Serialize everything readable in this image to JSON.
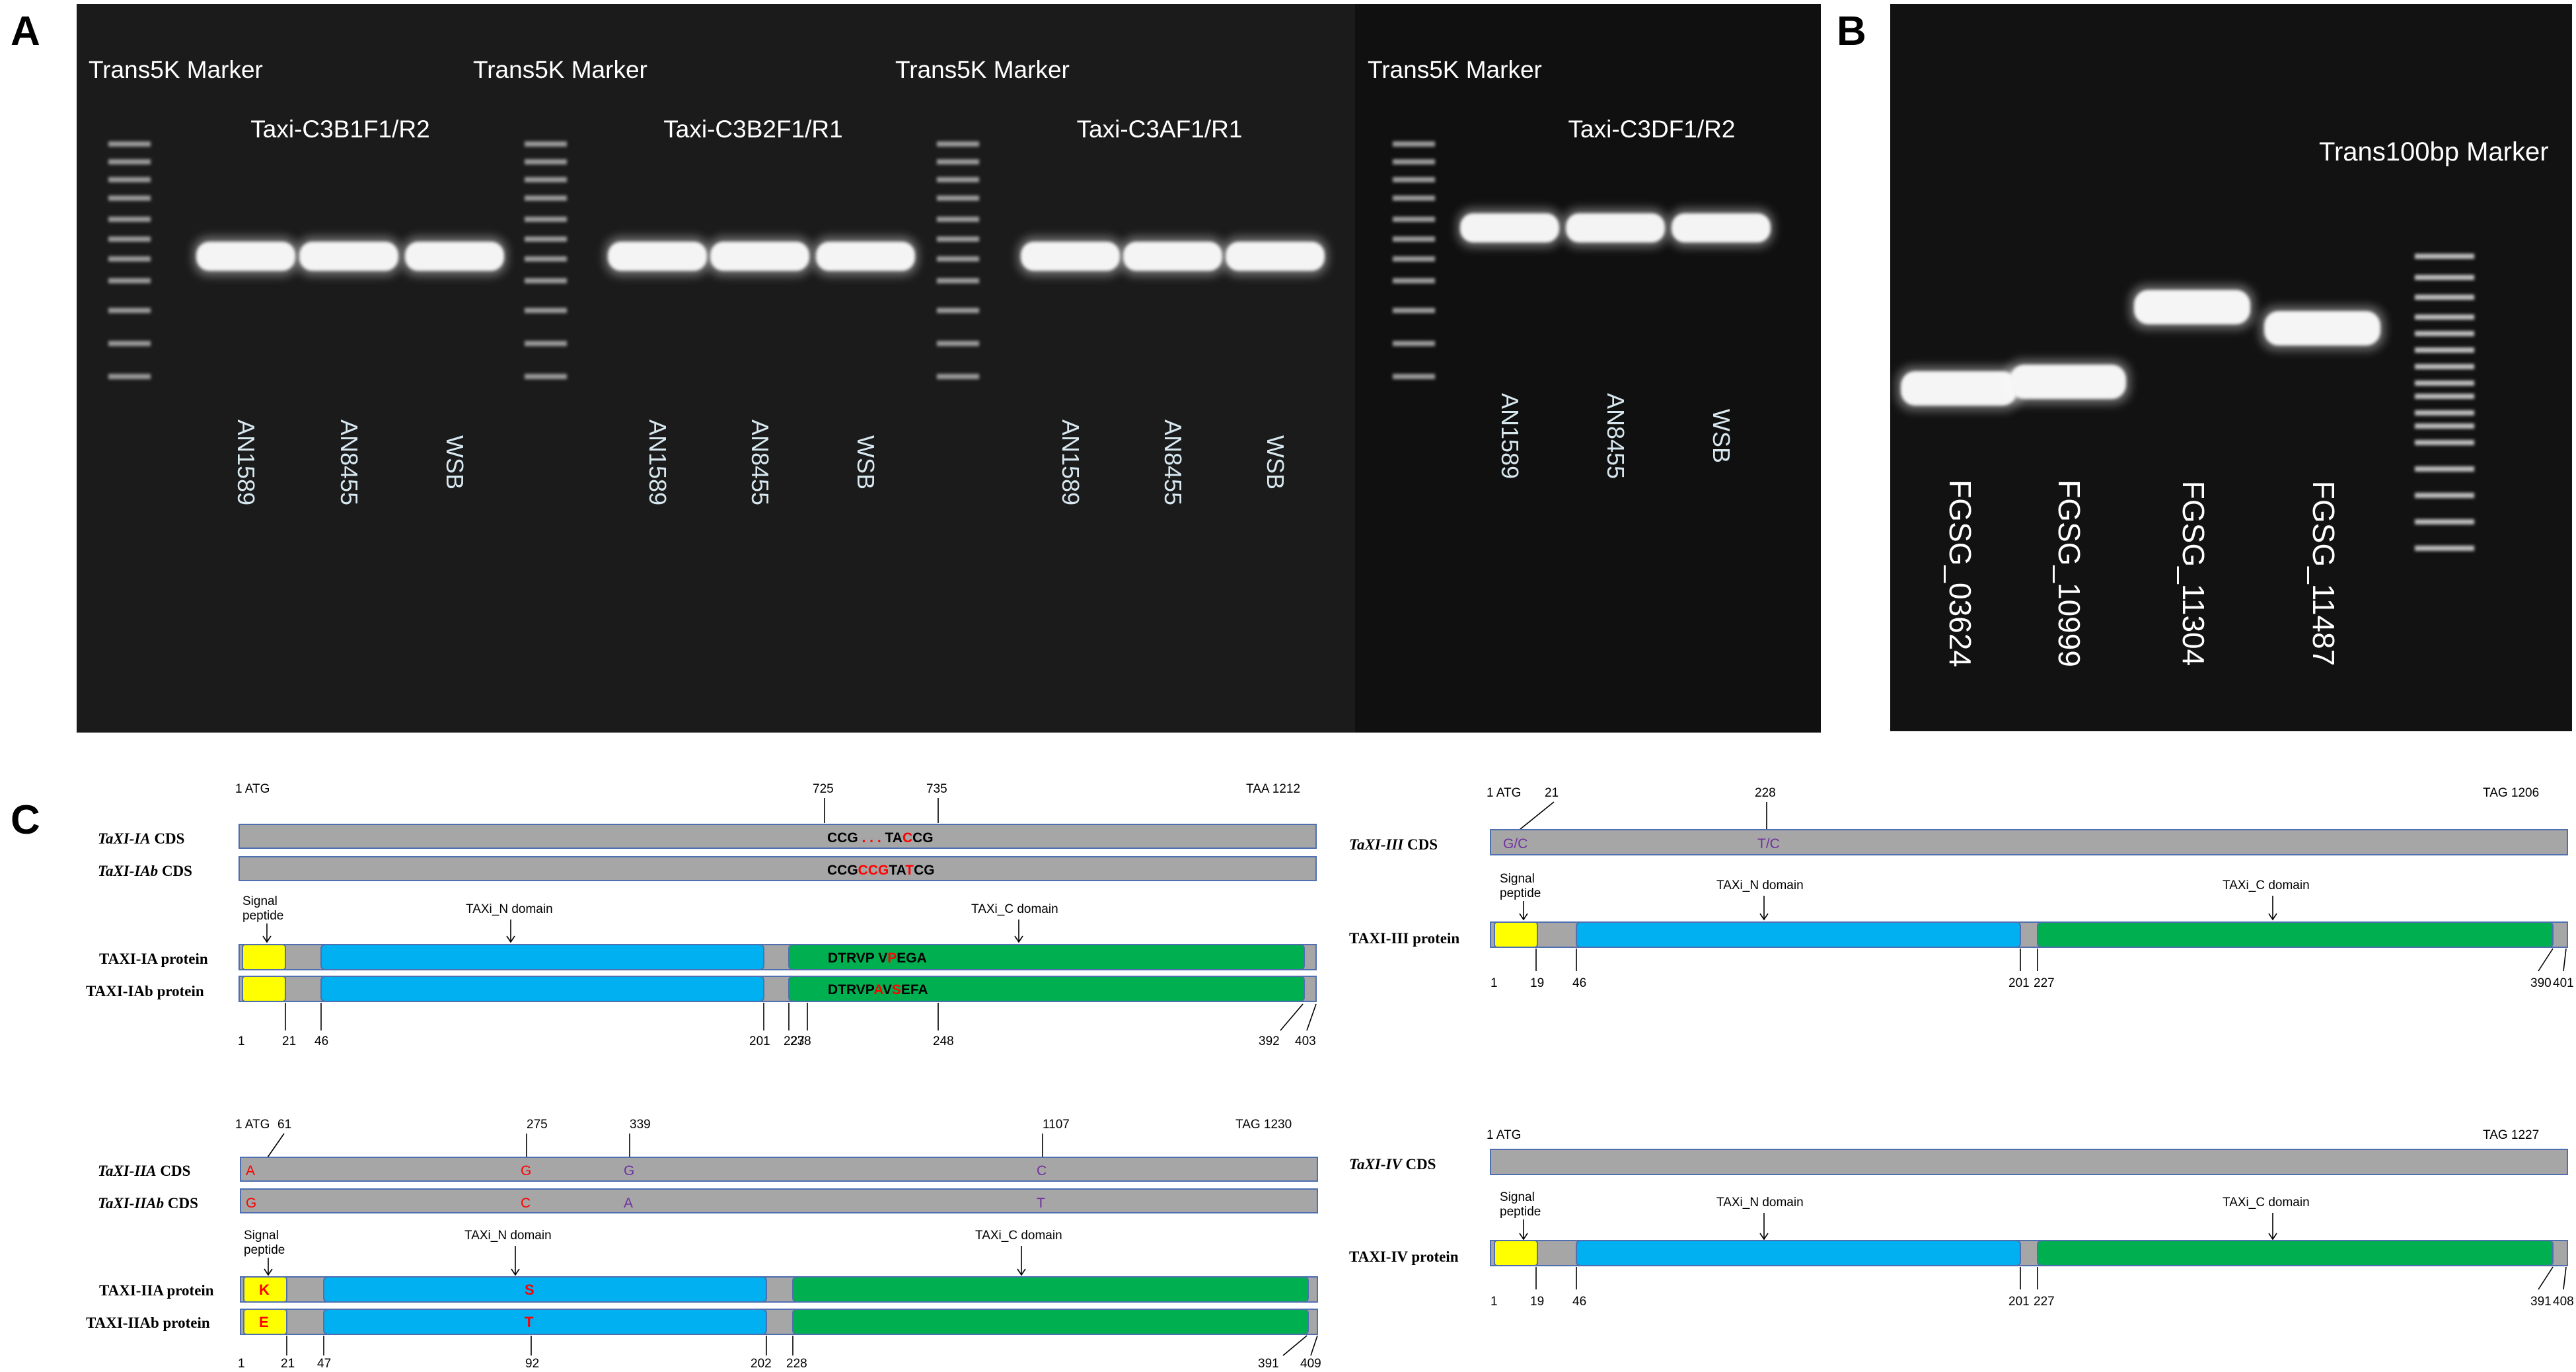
{
  "panels": {
    "A": "A",
    "B": "B",
    "C": "C"
  },
  "gelA": {
    "marker_label": "Trans5K Marker",
    "groups": [
      {
        "primer": "Taxi-C3B1F1/R2",
        "lanes": [
          "AN1589",
          "AN8455",
          "WSB"
        ]
      },
      {
        "primer": "Taxi-C3B2F1/R1",
        "lanes": [
          "AN1589",
          "AN8455",
          "WSB"
        ]
      },
      {
        "primer": "Taxi-C3AF1/R1",
        "lanes": [
          "AN1589",
          "AN8455",
          "WSB"
        ]
      },
      {
        "primer": "Taxi-C3DF1/R2",
        "lanes": [
          "AN1589",
          "AN8455",
          "WSB"
        ]
      }
    ]
  },
  "gelB": {
    "marker_label": "Trans100bp Marker",
    "lanes": [
      "FGSG_03624",
      "FGSG_10999",
      "FGSG_11304",
      "FGSG_11487"
    ]
  },
  "colors": {
    "gel_bg": "#141414",
    "gray_bar": "#a6a6a6",
    "signal": "#ffff00",
    "taxi_n": "#00b0f0",
    "taxi_c": "#00b050",
    "red": "#ff0000",
    "purple": "#7030a0"
  },
  "diagrams": {
    "ia": {
      "cds_labels": [
        "TaXI-IA",
        "TaXI-IAb"
      ],
      "cds_suffix": "CDS",
      "start": "1 ATG",
      "stop": "TAA 1212",
      "pos": [
        "725",
        "735"
      ],
      "seq1": [
        "CCG",
        " . . . ",
        "TA",
        "C",
        "CG"
      ],
      "seq2": [
        "CCG",
        "CCG",
        "TA",
        "T",
        "CG"
      ],
      "protein_labels": [
        "TAXI-IA protein",
        "TAXI-IAb protein"
      ],
      "signal": [
        "Signal",
        "peptide"
      ],
      "n_domain": "TAXi_N domain",
      "c_domain": "TAXi_C domain",
      "pep1": [
        "DTRVP",
        "  ",
        "V",
        "P",
        "EGA"
      ],
      "pep2": [
        "DTRVP",
        "A",
        "V",
        "S",
        "EFA"
      ],
      "bottom": [
        "1",
        "21",
        "46",
        "201",
        "227",
        "238",
        "248",
        "392",
        "403"
      ]
    },
    "iia": {
      "cds_labels": [
        "TaXI-IIA",
        "TaXI-IIAb"
      ],
      "cds_suffix": "CDS",
      "start": "1 ATG",
      "stop": "TAG 1230",
      "pos": [
        "61",
        "275",
        "339",
        "1107"
      ],
      "row1": [
        "A",
        "G",
        "G",
        "C"
      ],
      "row2": [
        "G",
        "C",
        "A",
        "T"
      ],
      "protein_labels": [
        "TAXI-IIA protein",
        "TAXI-IIAb protein"
      ],
      "signal": [
        "Signal",
        "peptide"
      ],
      "n_domain": "TAXi_N domain",
      "c_domain": "TAXi_C domain",
      "aa1": [
        "K",
        "S"
      ],
      "aa2": [
        "E",
        "T"
      ],
      "bottom": [
        "1",
        "21",
        "47",
        "92",
        "202",
        "228",
        "391",
        "409"
      ]
    },
    "iii": {
      "cds_label": "TaXI-III",
      "cds_suffix": "CDS",
      "start": "1 ATG",
      "pos": [
        "21",
        "228"
      ],
      "stop": "TAG 1206",
      "snps": [
        "G/C",
        "T/C"
      ],
      "protein_label": "TAXI-III protein",
      "signal": [
        "Signal",
        "peptide"
      ],
      "n_domain": "TAXi_N domain",
      "c_domain": "TAXi_C domain",
      "bottom": [
        "1",
        "19",
        "46",
        "201",
        "227",
        "390",
        "401"
      ]
    },
    "iv": {
      "cds_label": "TaXI-IV",
      "cds_suffix": "CDS",
      "start": "1 ATG",
      "stop": "TAG 1227",
      "protein_label": "TAXI-IV protein",
      "signal": [
        "Signal",
        "peptide"
      ],
      "n_domain": "TAXi_N domain",
      "c_domain": "TAXi_C domain",
      "bottom": [
        "1",
        "19",
        "46",
        "201",
        "227",
        "391",
        "408"
      ]
    }
  }
}
